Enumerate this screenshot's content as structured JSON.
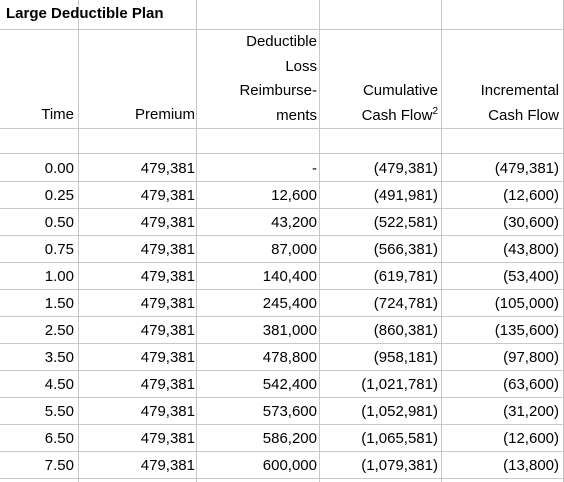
{
  "title": "Large Deductible Plan",
  "headers": {
    "time": "Time",
    "premium": "Premium",
    "deductible_lines": [
      "Deductible",
      "Loss",
      "Reimburse-",
      "ments"
    ],
    "cumulative_lines": [
      "Cumulative",
      "Cash Flow"
    ],
    "cumulative_sup": "2",
    "incremental_lines": [
      "Incremental",
      "Cash Flow"
    ]
  },
  "rows": [
    {
      "time": "0.00",
      "premium": "479,381",
      "reimb": "-",
      "cumulative": "(479,381)",
      "incremental": "(479,381)"
    },
    {
      "time": "0.25",
      "premium": "479,381",
      "reimb": "12,600",
      "cumulative": "(491,981)",
      "incremental": "(12,600)"
    },
    {
      "time": "0.50",
      "premium": "479,381",
      "reimb": "43,200",
      "cumulative": "(522,581)",
      "incremental": "(30,600)"
    },
    {
      "time": "0.75",
      "premium": "479,381",
      "reimb": "87,000",
      "cumulative": "(566,381)",
      "incremental": "(43,800)"
    },
    {
      "time": "1.00",
      "premium": "479,381",
      "reimb": "140,400",
      "cumulative": "(619,781)",
      "incremental": "(53,400)"
    },
    {
      "time": "1.50",
      "premium": "479,381",
      "reimb": "245,400",
      "cumulative": "(724,781)",
      "incremental": "(105,000)"
    },
    {
      "time": "2.50",
      "premium": "479,381",
      "reimb": "381,000",
      "cumulative": "(860,381)",
      "incremental": "(135,600)"
    },
    {
      "time": "3.50",
      "premium": "479,381",
      "reimb": "478,800",
      "cumulative": "(958,181)",
      "incremental": "(97,800)"
    },
    {
      "time": "4.50",
      "premium": "479,381",
      "reimb": "542,400",
      "cumulative": "(1,021,781)",
      "incremental": "(63,600)"
    },
    {
      "time": "5.50",
      "premium": "479,381",
      "reimb": "573,600",
      "cumulative": "(1,052,981)",
      "incremental": "(31,200)"
    },
    {
      "time": "6.50",
      "premium": "479,381",
      "reimb": "586,200",
      "cumulative": "(1,065,581)",
      "incremental": "(12,600)"
    },
    {
      "time": "7.50",
      "premium": "479,381",
      "reimb": "600,000",
      "cumulative": "(1,079,381)",
      "incremental": "(13,800)"
    }
  ]
}
